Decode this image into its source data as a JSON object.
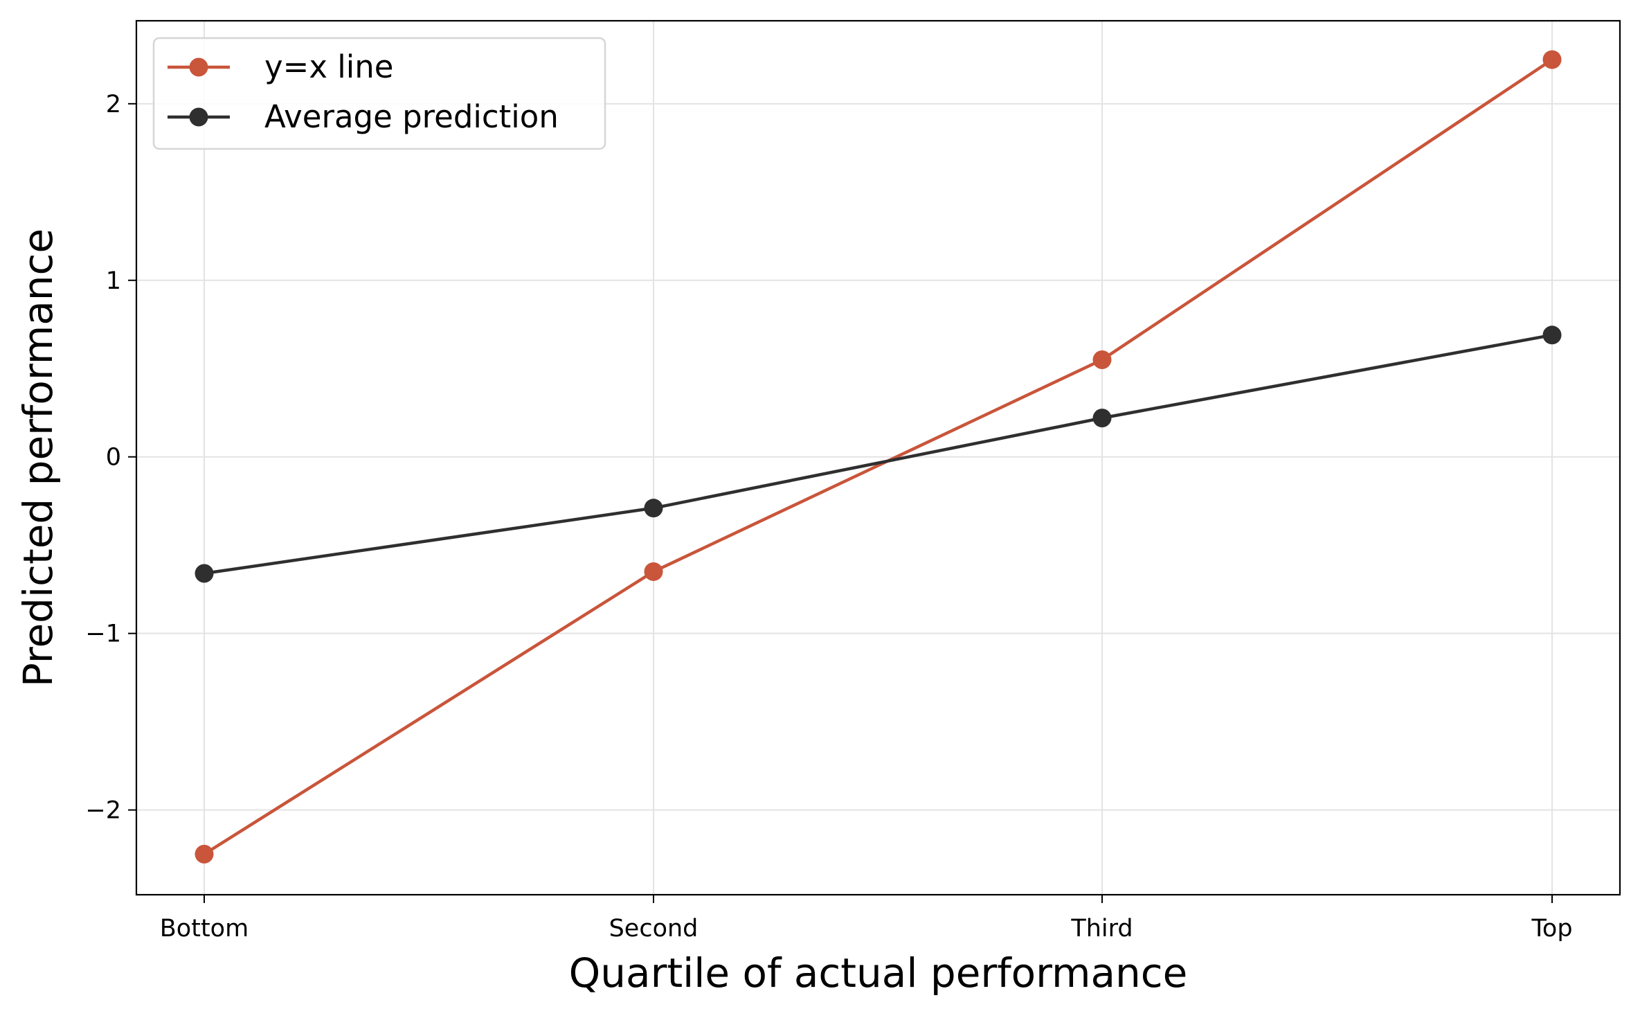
{
  "chart_data": {
    "type": "line",
    "categories": [
      "Bottom",
      "Second",
      "Third",
      "Top"
    ],
    "series": [
      {
        "name": "y=x line",
        "values": [
          -2.25,
          -0.65,
          0.55,
          2.25
        ],
        "color": "#c9553a"
      },
      {
        "name": "Average prediction",
        "values": [
          -0.66,
          -0.29,
          0.22,
          0.69
        ],
        "color": "#2f2f2f"
      }
    ],
    "xlabel": "Quartile of actual performance",
    "ylabel": "Predicted performance",
    "ylim": [
      -2.48,
      2.47
    ],
    "yticks": [
      -2,
      -1,
      0,
      1,
      2
    ],
    "ytick_labels": [
      "−2",
      "−1",
      "0",
      "1",
      "2"
    ],
    "grid": true,
    "legend_position": "top-left"
  }
}
